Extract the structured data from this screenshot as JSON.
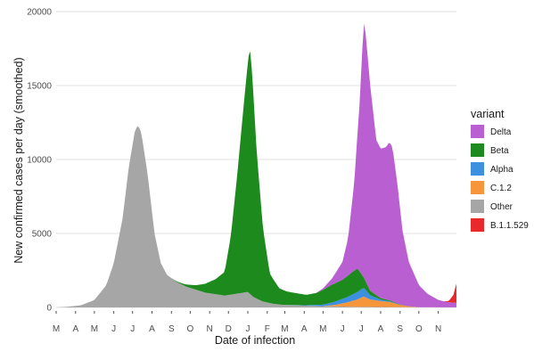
{
  "chart_data": {
    "type": "area",
    "stacked": true,
    "xlabel": "Date of infection",
    "ylabel": "New confirmed cases per day (smoothed)",
    "ylim": [
      0,
      20000
    ],
    "yticks": [
      0,
      5000,
      10000,
      15000,
      20000
    ],
    "grid": true,
    "legend": {
      "title": "variant",
      "placement": "right"
    },
    "x_start": "2020-03-01",
    "x_end": "2021-11-30",
    "x_ticks": [
      {
        "label": "M",
        "date": "2020-03-01"
      },
      {
        "label": "A",
        "date": "2020-04-01"
      },
      {
        "label": "M",
        "date": "2020-05-01"
      },
      {
        "label": "J",
        "date": "2020-06-01"
      },
      {
        "label": "J",
        "date": "2020-07-01"
      },
      {
        "label": "A",
        "date": "2020-08-01"
      },
      {
        "label": "S",
        "date": "2020-09-01"
      },
      {
        "label": "O",
        "date": "2020-10-01"
      },
      {
        "label": "N",
        "date": "2020-11-01"
      },
      {
        "label": "D",
        "date": "2020-12-01"
      },
      {
        "label": "J",
        "date": "2021-01-01"
      },
      {
        "label": "F",
        "date": "2021-02-01"
      },
      {
        "label": "M",
        "date": "2021-03-01"
      },
      {
        "label": "A",
        "date": "2021-04-01"
      },
      {
        "label": "M",
        "date": "2021-05-01"
      },
      {
        "label": "J",
        "date": "2021-06-01"
      },
      {
        "label": "J",
        "date": "2021-07-01"
      },
      {
        "label": "A",
        "date": "2021-08-01"
      },
      {
        "label": "S",
        "date": "2021-09-01"
      },
      {
        "label": "O",
        "date": "2021-10-01"
      },
      {
        "label": "N",
        "date": "2021-11-01"
      }
    ],
    "stack_order": [
      "Other",
      "C.1.2",
      "Alpha",
      "Beta",
      "Delta",
      "B.1.1.529"
    ],
    "legend_order": [
      "Delta",
      "Beta",
      "Alpha",
      "C.1.2",
      "Other",
      "B.1.1.529"
    ],
    "series": [
      {
        "name": "Other",
        "color": "#a6a6a6",
        "points": [
          [
            "2020-03-01",
            0
          ],
          [
            "2020-03-20",
            50
          ],
          [
            "2020-04-10",
            150
          ],
          [
            "2020-05-01",
            500
          ],
          [
            "2020-05-20",
            1500
          ],
          [
            "2020-06-01",
            3000
          ],
          [
            "2020-06-15",
            6000
          ],
          [
            "2020-06-25",
            9500
          ],
          [
            "2020-07-05",
            12000
          ],
          [
            "2020-07-10",
            12300
          ],
          [
            "2020-07-15",
            11800
          ],
          [
            "2020-07-25",
            9000
          ],
          [
            "2020-08-05",
            5000
          ],
          [
            "2020-08-15",
            3000
          ],
          [
            "2020-08-25",
            2200
          ],
          [
            "2020-09-10",
            1700
          ],
          [
            "2020-09-25",
            1400
          ],
          [
            "2020-10-10",
            1200
          ],
          [
            "2020-10-25",
            1000
          ],
          [
            "2020-11-10",
            900
          ],
          [
            "2020-11-25",
            800
          ],
          [
            "2020-12-10",
            900
          ],
          [
            "2020-12-25",
            1000
          ],
          [
            "2021-01-01",
            1050
          ],
          [
            "2021-01-10",
            700
          ],
          [
            "2021-01-25",
            400
          ],
          [
            "2021-02-10",
            250
          ],
          [
            "2021-02-25",
            180
          ],
          [
            "2021-03-15",
            150
          ],
          [
            "2021-04-01",
            120
          ],
          [
            "2021-04-20",
            100
          ],
          [
            "2021-05-10",
            80
          ],
          [
            "2021-06-01",
            60
          ],
          [
            "2021-07-01",
            40
          ],
          [
            "2021-08-01",
            30
          ],
          [
            "2021-09-01",
            20
          ],
          [
            "2021-10-01",
            15
          ],
          [
            "2021-11-01",
            10
          ],
          [
            "2021-11-30",
            10
          ]
        ]
      },
      {
        "name": "C.1.2",
        "color": "#f7953a",
        "points": [
          [
            "2020-03-01",
            0
          ],
          [
            "2021-05-01",
            0
          ],
          [
            "2021-05-20",
            100
          ],
          [
            "2021-06-10",
            300
          ],
          [
            "2021-06-25",
            500
          ],
          [
            "2021-07-05",
            700
          ],
          [
            "2021-07-15",
            500
          ],
          [
            "2021-08-01",
            400
          ],
          [
            "2021-08-15",
            350
          ],
          [
            "2021-09-01",
            150
          ],
          [
            "2021-09-15",
            50
          ],
          [
            "2021-10-01",
            0
          ],
          [
            "2021-11-30",
            0
          ]
        ]
      },
      {
        "name": "Alpha",
        "color": "#3d8fe0",
        "points": [
          [
            "2020-03-01",
            0
          ],
          [
            "2021-03-01",
            0
          ],
          [
            "2021-04-01",
            30
          ],
          [
            "2021-05-01",
            100
          ],
          [
            "2021-06-01",
            300
          ],
          [
            "2021-06-25",
            500
          ],
          [
            "2021-07-05",
            600
          ],
          [
            "2021-07-15",
            300
          ],
          [
            "2021-08-01",
            100
          ],
          [
            "2021-08-15",
            50
          ],
          [
            "2021-09-01",
            0
          ],
          [
            "2021-11-30",
            0
          ]
        ]
      },
      {
        "name": "Beta",
        "color": "#1c8a1c",
        "points": [
          [
            "2020-03-01",
            0
          ],
          [
            "2020-09-01",
            0
          ],
          [
            "2020-09-20",
            100
          ],
          [
            "2020-10-10",
            300
          ],
          [
            "2020-10-25",
            600
          ],
          [
            "2020-11-10",
            1000
          ],
          [
            "2020-11-25",
            1600
          ],
          [
            "2020-12-05",
            4000
          ],
          [
            "2020-12-15",
            8000
          ],
          [
            "2020-12-25",
            12500
          ],
          [
            "2021-01-01",
            15500
          ],
          [
            "2021-01-04",
            16700
          ],
          [
            "2021-01-08",
            15000
          ],
          [
            "2021-01-15",
            10000
          ],
          [
            "2021-01-25",
            5000
          ],
          [
            "2021-02-05",
            2000
          ],
          [
            "2021-02-20",
            1100
          ],
          [
            "2021-03-05",
            900
          ],
          [
            "2021-03-20",
            800
          ],
          [
            "2021-04-05",
            700
          ],
          [
            "2021-04-20",
            800
          ],
          [
            "2021-05-01",
            1000
          ],
          [
            "2021-05-15",
            1200
          ],
          [
            "2021-06-01",
            1300
          ],
          [
            "2021-06-15",
            1500
          ],
          [
            "2021-06-25",
            1600
          ],
          [
            "2021-07-05",
            700
          ],
          [
            "2021-07-15",
            300
          ],
          [
            "2021-08-01",
            100
          ],
          [
            "2021-09-01",
            20
          ],
          [
            "2021-10-01",
            0
          ],
          [
            "2021-11-30",
            0
          ]
        ]
      },
      {
        "name": "Delta",
        "color": "#b95fd1",
        "points": [
          [
            "2020-03-01",
            0
          ],
          [
            "2021-04-20",
            0
          ],
          [
            "2021-05-01",
            100
          ],
          [
            "2021-05-15",
            400
          ],
          [
            "2021-06-01",
            1200
          ],
          [
            "2021-06-10",
            2500
          ],
          [
            "2021-06-20",
            6000
          ],
          [
            "2021-06-28",
            11000
          ],
          [
            "2021-07-03",
            15500
          ],
          [
            "2021-07-06",
            17500
          ],
          [
            "2021-07-10",
            16000
          ],
          [
            "2021-07-15",
            14000
          ],
          [
            "2021-07-25",
            10500
          ],
          [
            "2021-08-01",
            10100
          ],
          [
            "2021-08-10",
            10300
          ],
          [
            "2021-08-15",
            10700
          ],
          [
            "2021-08-20",
            10400
          ],
          [
            "2021-08-28",
            8000
          ],
          [
            "2021-09-05",
            5000
          ],
          [
            "2021-09-15",
            3000
          ],
          [
            "2021-10-01",
            1500
          ],
          [
            "2021-10-15",
            900
          ],
          [
            "2021-11-01",
            500
          ],
          [
            "2021-11-15",
            350
          ],
          [
            "2021-11-30",
            300
          ]
        ]
      },
      {
        "name": "B.1.1.529",
        "color": "#e8282b",
        "points": [
          [
            "2020-03-01",
            0
          ],
          [
            "2021-11-10",
            0
          ],
          [
            "2021-11-18",
            100
          ],
          [
            "2021-11-25",
            500
          ],
          [
            "2021-11-30",
            1300
          ]
        ]
      }
    ]
  }
}
